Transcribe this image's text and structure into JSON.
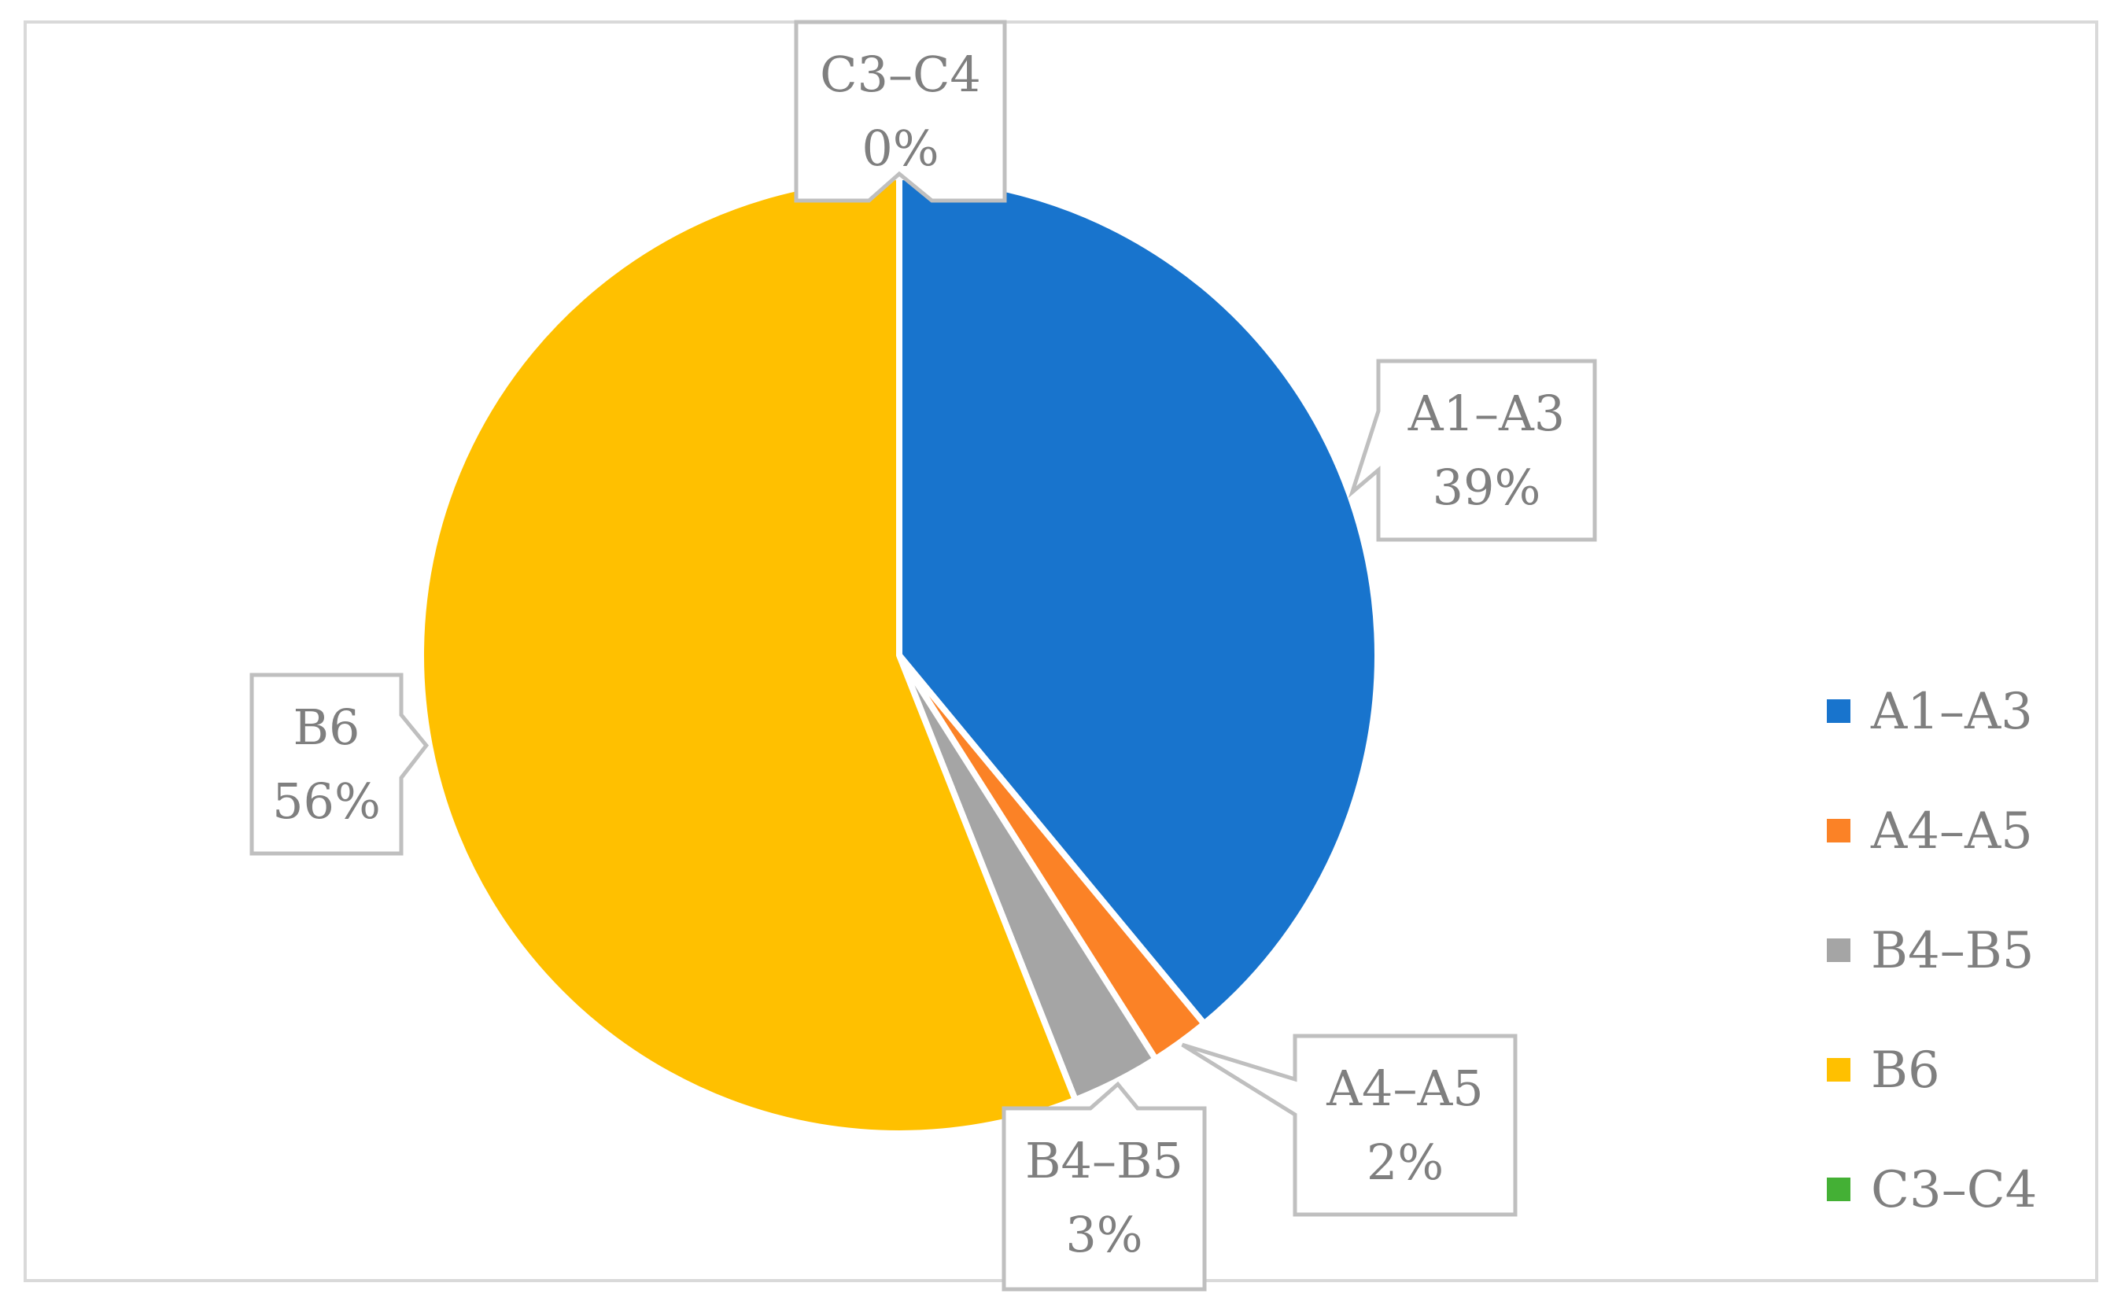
{
  "chart_data": {
    "type": "pie",
    "categories": [
      "A1–A3",
      "A4–A5",
      "B4–B5",
      "B6",
      "C3–C4"
    ],
    "values": [
      39,
      2,
      3,
      56,
      0
    ],
    "colors": [
      "#1874cd",
      "#fb8226",
      "#a5a5a5",
      "#ffc000",
      "#44b035"
    ],
    "labels": [
      {
        "name": "A1–A3",
        "pct": "39%"
      },
      {
        "name": "A4–A5",
        "pct": "2%"
      },
      {
        "name": "B4–B5",
        "pct": "3%"
      },
      {
        "name": "B6",
        "pct": "56%"
      },
      {
        "name": "C3–C4",
        "pct": "0%"
      }
    ],
    "legend": {
      "position": "right",
      "entries": [
        "A1–A3",
        "A4–A5",
        "B4–B5",
        "B6",
        "C3–C4"
      ]
    }
  }
}
